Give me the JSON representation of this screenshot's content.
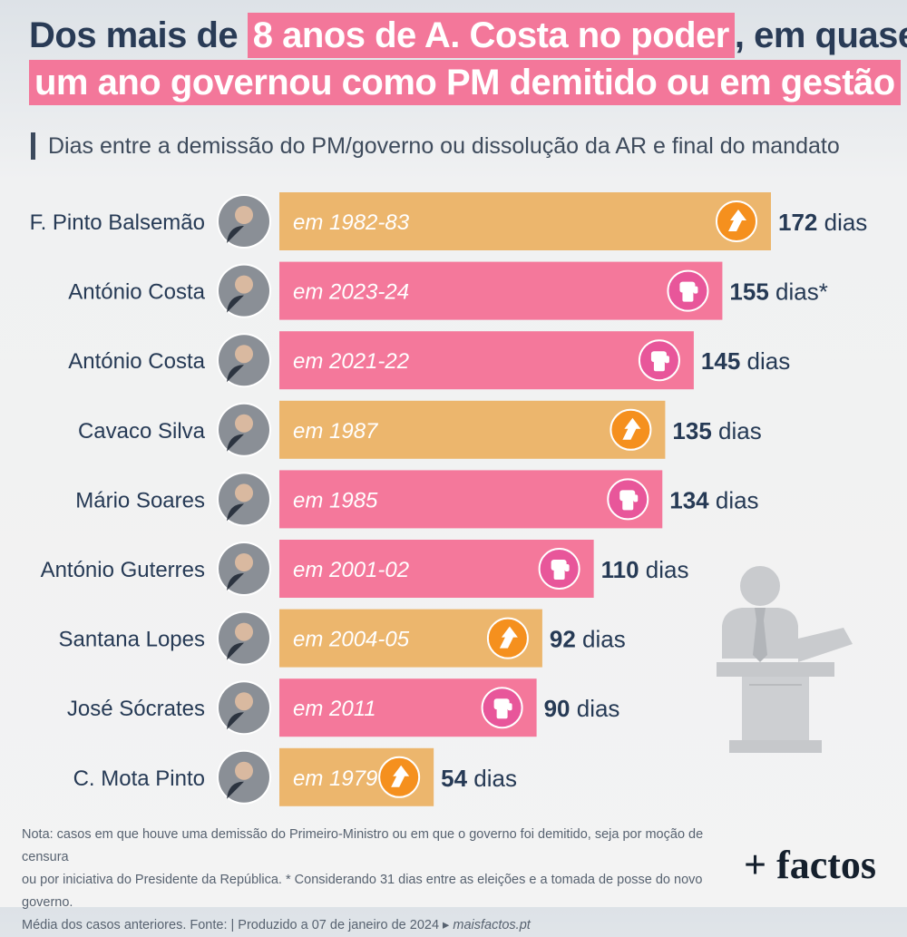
{
  "title": {
    "line1_a": "Dos mais de",
    "line1_b": "8 anos de A. Costa no poder",
    "line1_c": ", em quase",
    "line2": "um ano governou como PM demitido ou em gestão"
  },
  "subtitle": "Dias entre a demissão do PM/governo ou dissolução da AR e final do mandato",
  "colors": {
    "orange": "#ecb66d",
    "pink": "#f4789b",
    "orange_icon": "#f5901e",
    "pink_icon": "#e8569a",
    "navy": "#263a55"
  },
  "chart_data": {
    "type": "bar",
    "orientation": "horizontal",
    "unit_label": "dias",
    "categories": [
      "F. Pinto Balsemão",
      "António Costa",
      "António Costa",
      "Cavaco Silva",
      "Mário Soares",
      "António Guterres",
      "Santana Lopes",
      "José Sócrates",
      "C. Mota Pinto"
    ],
    "values": [
      172,
      155,
      145,
      135,
      134,
      110,
      92,
      90,
      54
    ],
    "value_suffixes": [
      "",
      "*",
      "",
      "",
      "",
      "",
      "",
      "",
      ""
    ],
    "bar_labels": [
      "em 1982-83",
      "em 2023-24",
      "em 2021-22",
      "em 1987",
      "em 1985",
      "em 2001-02",
      "em 2004-05",
      "em 2011",
      "em 1979"
    ],
    "bar_types": [
      "orange",
      "pink",
      "pink",
      "orange",
      "pink",
      "pink",
      "orange",
      "pink",
      "orange"
    ],
    "icons": [
      "arrow-icon",
      "fist-icon",
      "fist-icon",
      "arrow-icon",
      "fist-icon",
      "fist-icon",
      "arrow-icon",
      "fist-icon",
      "arrow-icon"
    ]
  },
  "footer": {
    "note_line1": "Nota: casos em que houve uma demissão do Primeiro-Ministro ou em que o governo foi demitido, seja por moção de censura",
    "note_line2": "ou por iniciativa do Presidente da República. * Considerando 31 dias entre as eleições e a tomada de posse do novo governo.",
    "note_line3a": "Média dos casos anteriores. Fonte:",
    "note_line3b": "| Produzido a 07 de janeiro de 2024 ▸",
    "note_site": "maisfactos.pt",
    "brand": "+ factos"
  }
}
